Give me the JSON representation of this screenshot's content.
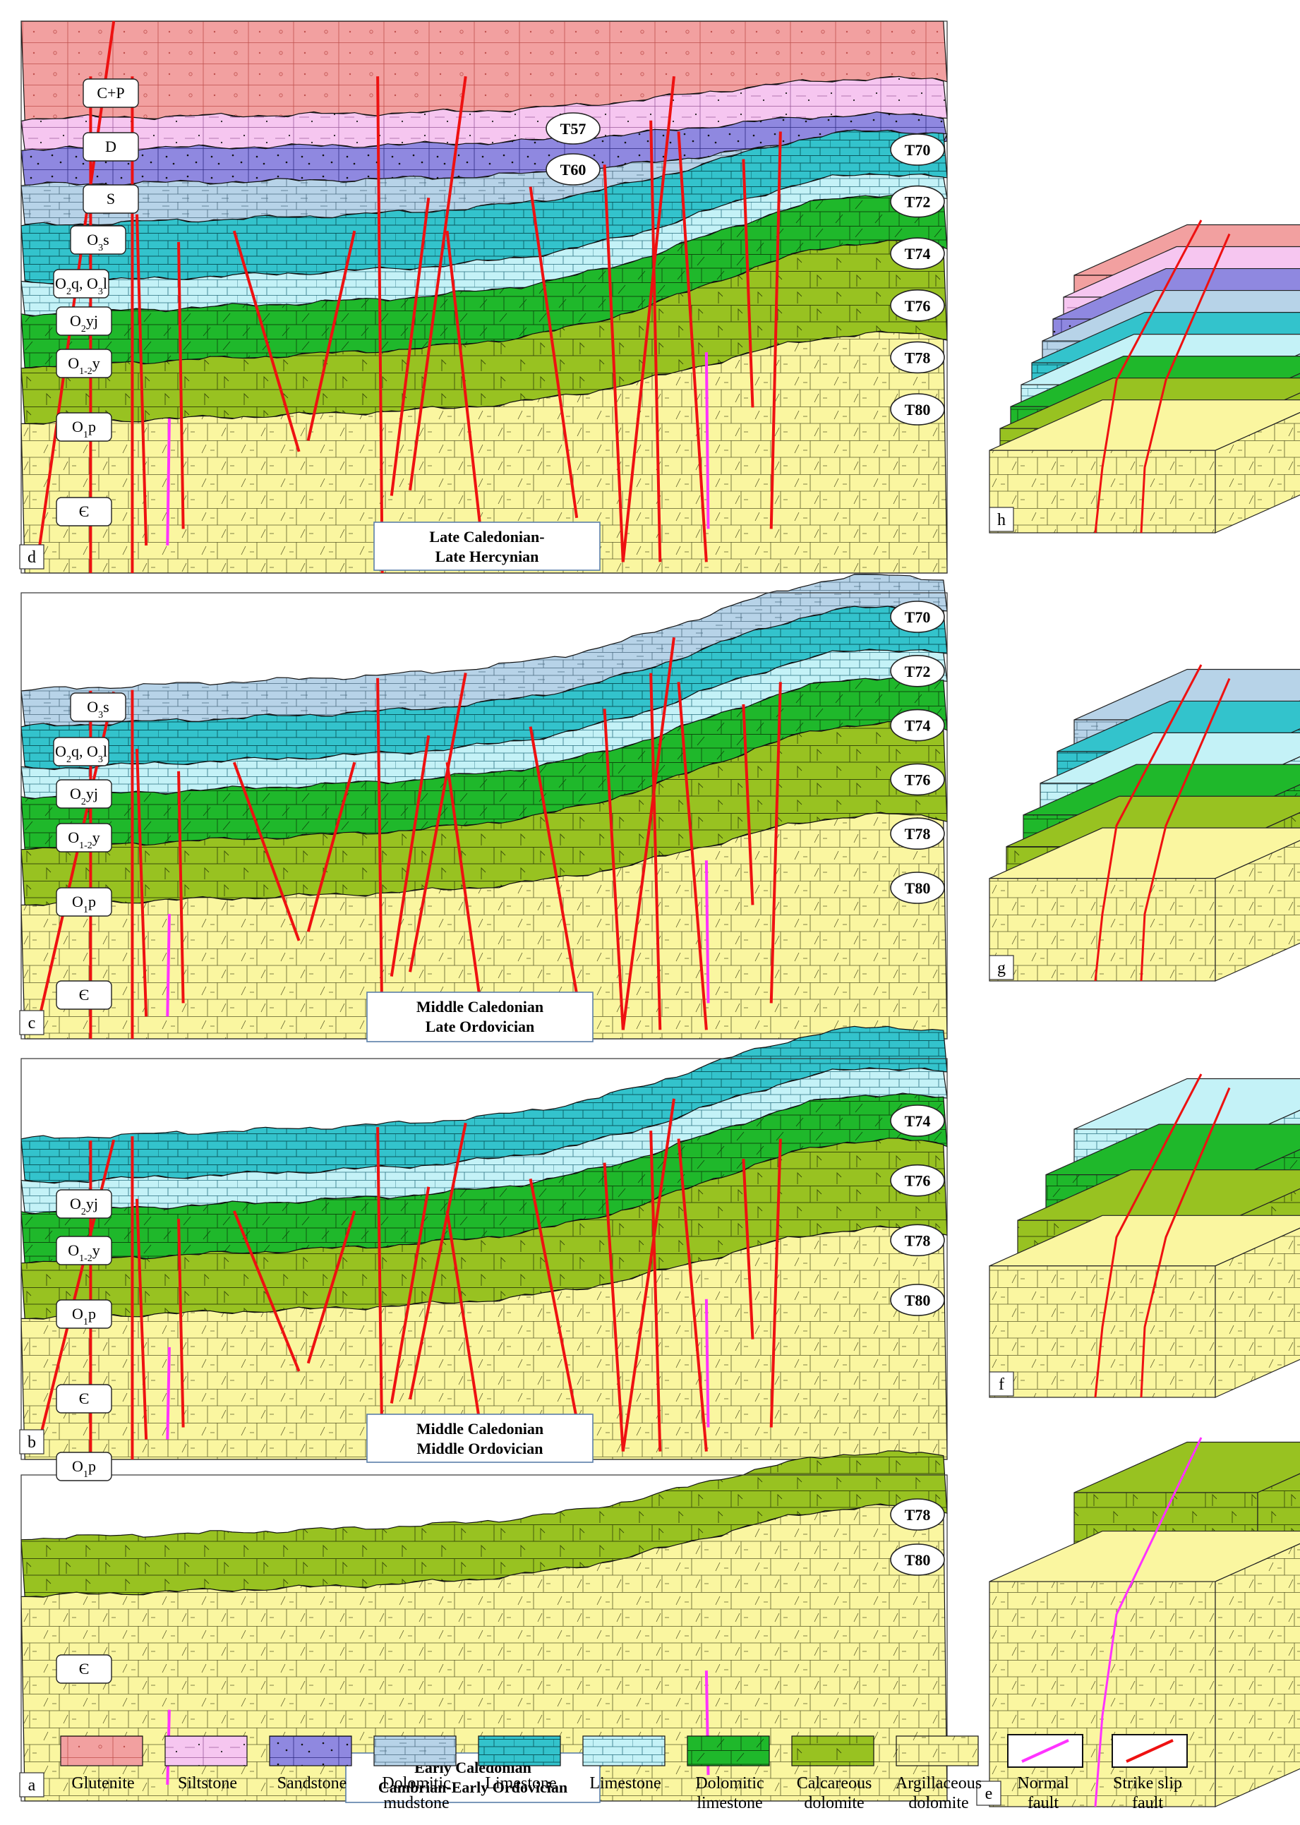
{
  "patterns": {
    "glutenite": {
      "fill": "#f2a0a0",
      "line": "#c0504d"
    },
    "siltstone": {
      "fill": "#f6c6f0",
      "line": "#9a5a9a"
    },
    "sandstone": {
      "fill": "#8f88e0",
      "line": "#2e2a80"
    },
    "dolmud": {
      "fill": "#b7d3e8",
      "line": "#4a6a80"
    },
    "limestone1": {
      "fill": "#33c3cc",
      "line": "#0a5a60"
    },
    "limestone2": {
      "fill": "#c4f2f7",
      "line": "#2a7080"
    },
    "dollime": {
      "fill": "#1fb82b",
      "line": "#0d4d0d"
    },
    "calcdol": {
      "fill": "#98c221",
      "line": "#3a4d0a"
    },
    "argdol": {
      "fill": "#faf6a0",
      "line": "#5a5a2a"
    }
  },
  "fault_colors": {
    "normal": "#ff33ff",
    "strike_slip": "#ee1111"
  },
  "panels": [
    {
      "id": "d",
      "stage_lines": [
        "Late Caledonian-",
        "Late Hercynian"
      ],
      "formation_labels": [
        {
          "text": "C+P"
        },
        {
          "text": "D"
        },
        {
          "text": "S"
        },
        {
          "text": "O",
          "sub": "3",
          "rest": "s"
        },
        {
          "text": "O",
          "sub": "2",
          "rest": "q, O",
          "sub2": "3",
          "rest2": "l"
        },
        {
          "text": "O",
          "sub": "2",
          "rest": "yj"
        },
        {
          "text": "O",
          "sub": "1-2",
          "rest": "y"
        },
        {
          "text": "O",
          "sub": "1",
          "rest": "p"
        },
        {
          "text": "Є"
        }
      ],
      "horizons": [
        "T57",
        "T60",
        "T70",
        "T72",
        "T74",
        "T76",
        "T78",
        "T80"
      ]
    },
    {
      "id": "c",
      "stage_lines": [
        "Middle Caledonian",
        "Late Ordovician"
      ],
      "formation_labels": [
        {
          "text": "O",
          "sub": "3",
          "rest": "s"
        },
        {
          "text": "O",
          "sub": "2",
          "rest": "q, O",
          "sub2": "3",
          "rest2": "l"
        },
        {
          "text": "O",
          "sub": "2",
          "rest": "yj"
        },
        {
          "text": "O",
          "sub": "1-2",
          "rest": "y"
        },
        {
          "text": "O",
          "sub": "1",
          "rest": "p"
        },
        {
          "text": "Є"
        }
      ],
      "horizons": [
        "T70",
        "T72",
        "T74",
        "T76",
        "T78",
        "T80"
      ]
    },
    {
      "id": "b",
      "stage_lines": [
        "Middle Caledonian",
        "Middle Ordovician"
      ],
      "formation_labels": [
        {
          "text": "O",
          "sub": "2",
          "rest": "yj"
        },
        {
          "text": "O",
          "sub": "1-2",
          "rest": "y"
        },
        {
          "text": "O",
          "sub": "1",
          "rest": "p"
        },
        {
          "text": "Є"
        }
      ],
      "horizons": [
        "T74",
        "T76",
        "T78",
        "T80"
      ]
    },
    {
      "id": "a",
      "stage_lines": [
        "Early Caledonian",
        "Cambrian-Early Ordovician"
      ],
      "formation_labels": [
        {
          "text": "O",
          "sub": "1",
          "rest": "p"
        },
        {
          "text": "Є"
        }
      ],
      "horizons": [
        "T78",
        "T80"
      ]
    }
  ],
  "block_labels": [
    "h",
    "g",
    "f",
    "e"
  ],
  "legend": [
    {
      "pattern": "glutenite",
      "label": [
        "Glutenite"
      ]
    },
    {
      "pattern": "siltstone",
      "label": [
        "Siltstone"
      ]
    },
    {
      "pattern": "sandstone",
      "label": [
        "Sandstone"
      ]
    },
    {
      "pattern": "dolmud",
      "label": [
        "Dolomitic",
        "mudstone"
      ]
    },
    {
      "pattern": "limestone1",
      "label": [
        "Limestone"
      ]
    },
    {
      "pattern": "limestone2",
      "label": [
        "Limestone"
      ]
    },
    {
      "pattern": "dollime",
      "label": [
        "Dolomitic",
        "limestone"
      ]
    },
    {
      "pattern": "calcdol",
      "label": [
        "Calcareous",
        "dolomite"
      ]
    },
    {
      "pattern": "argdol",
      "label": [
        "Argillaceous",
        "dolomite"
      ]
    },
    {
      "pattern": "normal",
      "label": [
        "Normal",
        "fault"
      ]
    },
    {
      "pattern": "strike",
      "label": [
        "Strike slip",
        "fault"
      ]
    }
  ]
}
